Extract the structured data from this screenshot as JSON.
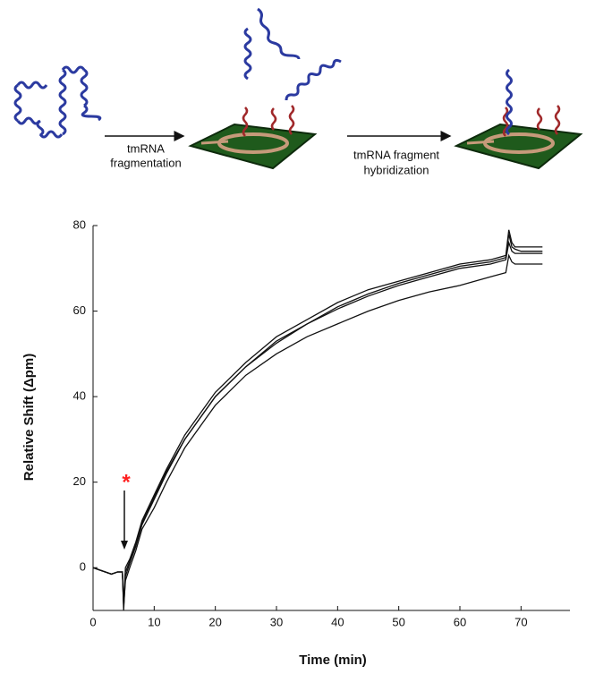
{
  "schematic": {
    "steps": [
      [
        "tmRNA",
        "fragmentation"
      ],
      [
        "tmRNA fragment",
        "hybridization"
      ]
    ]
  },
  "chart_data": {
    "type": "line",
    "x_label": "Time (min)",
    "y_label": "Relative Shift (Δpm)",
    "annotation": "*",
    "x": [
      0,
      1,
      2,
      3,
      4,
      4.8,
      5,
      5.3,
      6,
      7,
      8,
      10,
      12,
      15,
      18,
      20,
      25,
      30,
      35,
      40,
      45,
      50,
      55,
      60,
      65,
      67.5,
      68,
      68.5,
      69,
      70,
      72,
      73.5
    ],
    "series": [
      {
        "color": "#111111",
        "values": [
          0,
          -0.5,
          -1,
          -1.5,
          -1,
          -1,
          -9,
          0,
          2,
          6,
          11,
          17,
          23,
          31,
          37,
          41,
          48,
          54,
          58,
          62,
          65,
          67,
          69,
          71,
          72,
          73,
          79,
          76,
          75,
          75,
          75,
          75
        ]
      },
      {
        "color": "#111111",
        "values": [
          0,
          -0.5,
          -1,
          -1.5,
          -1,
          -1,
          -10,
          -2,
          1,
          5,
          10,
          16,
          22,
          30,
          36,
          40,
          47,
          53,
          57,
          61,
          64,
          66.5,
          68.5,
          70.5,
          71.5,
          72.5,
          78,
          75,
          74.5,
          74,
          74,
          74
        ]
      },
      {
        "color": "#111111",
        "values": [
          0,
          -0.5,
          -1,
          -1.5,
          -1,
          -1,
          -8,
          -1,
          1.5,
          5.5,
          10.5,
          16.5,
          22.5,
          30,
          36,
          40,
          47,
          52.5,
          57,
          60.5,
          63.5,
          66,
          68,
          70,
          71,
          72,
          76,
          74,
          73.5,
          73.5,
          73.5,
          73.5
        ]
      },
      {
        "color": "#111111",
        "values": [
          0,
          -0.5,
          -1,
          -1.5,
          -1,
          -1,
          -9,
          -3,
          0,
          4,
          9,
          14,
          20,
          28,
          34,
          38,
          45,
          50,
          54,
          57,
          60,
          62.5,
          64.5,
          66,
          68,
          69,
          73,
          71.5,
          71,
          71,
          71,
          71
        ]
      }
    ],
    "xlim": [
      0,
      78
    ],
    "xticks": [
      0,
      10,
      20,
      30,
      40,
      50,
      60,
      70
    ],
    "ylim": [
      -10,
      80
    ],
    "yticks": [
      0,
      20,
      40,
      60,
      80
    ],
    "annotation_color": "#ff2020"
  }
}
